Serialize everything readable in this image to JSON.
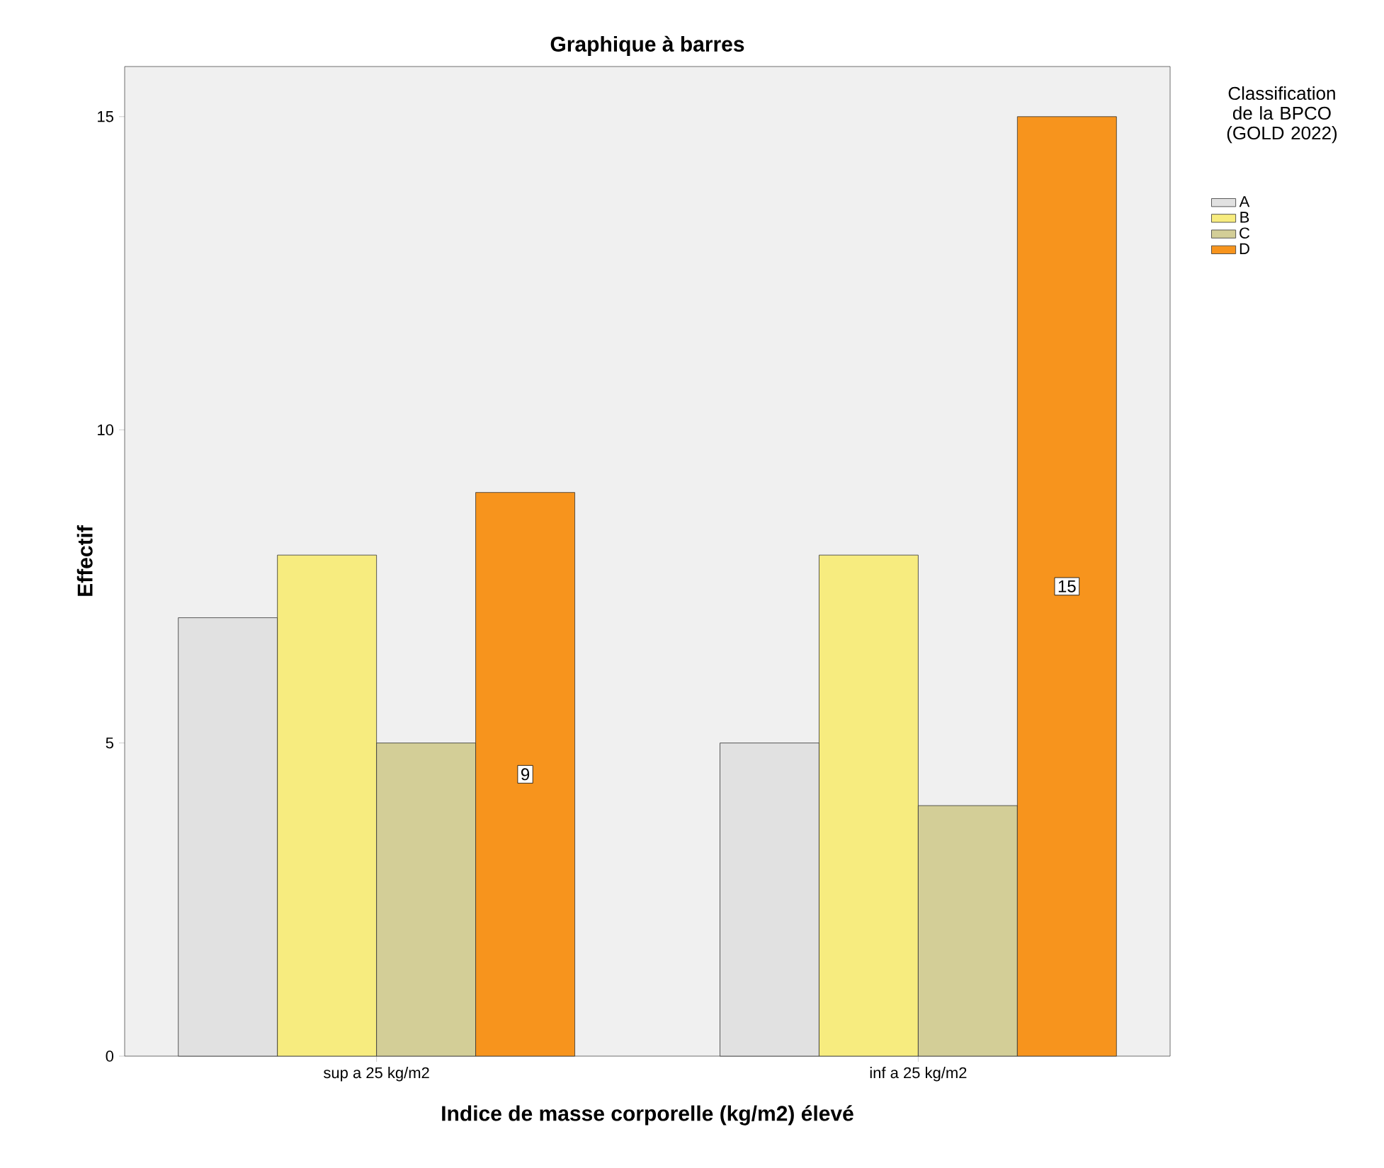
{
  "chart_data": {
    "type": "bar",
    "title": "Graphique à barres",
    "xlabel": "Indice de masse corporelle (kg/m2) élevé",
    "ylabel": "Effectif",
    "legend_title": "Classification de la BPCO (GOLD 2022)",
    "categories": [
      "sup a 25 kg/m2",
      "inf a 25 kg/m2"
    ],
    "series": [
      {
        "name": "A",
        "color": "#e1e1e1",
        "values": [
          7,
          5
        ]
      },
      {
        "name": "B",
        "color": "#f7ec7f",
        "values": [
          8,
          8
        ]
      },
      {
        "name": "C",
        "color": "#d3ce97",
        "values": [
          5,
          4
        ]
      },
      {
        "name": "D",
        "color": "#f7941d",
        "values": [
          9,
          15
        ],
        "value_labels": [
          "9",
          "15"
        ]
      }
    ],
    "ylim": [
      0,
      15.8
    ],
    "yticks": [
      0,
      5,
      10,
      15
    ],
    "grid": false,
    "legend": "right"
  }
}
